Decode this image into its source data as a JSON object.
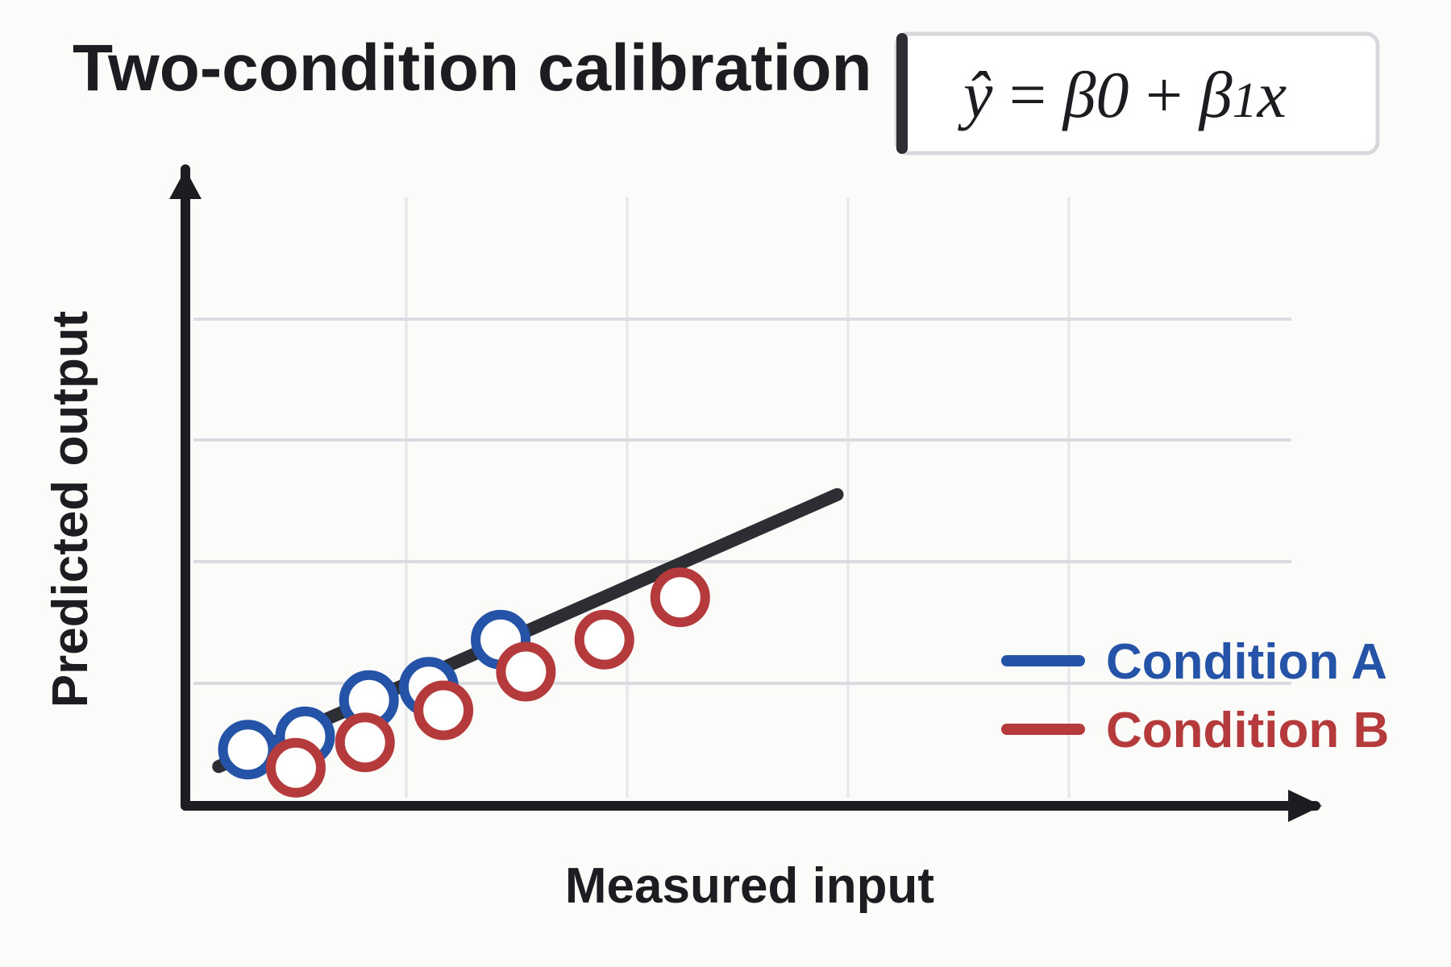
{
  "chart_data": {
    "type": "scatter",
    "title": "Two-condition calibration",
    "equation": {
      "yhat": "ŷ",
      "eq": " = ",
      "b0": "β",
      "sub0": "0",
      "plus": " + ",
      "b1": "β",
      "sub1": "1",
      "x": "x"
    },
    "xlabel": "Measured input",
    "ylabel": "Predicted output",
    "xlim": [
      0,
      10
    ],
    "ylim": [
      0,
      10
    ],
    "grid": true,
    "legend_position": "bottom-right",
    "fit_line": {
      "x": [
        0.25,
        4.9
      ],
      "y": [
        0.65,
        5.15
      ],
      "color": "#2c2e33"
    },
    "series": [
      {
        "name": "Condition A",
        "color": "#2553a8",
        "x": [
          0.47,
          0.9,
          1.38,
          1.83,
          2.37
        ],
        "y": [
          0.93,
          1.15,
          1.75,
          1.97,
          2.75
        ]
      },
      {
        "name": "Condition B",
        "color": "#b53a3c",
        "x": [
          0.83,
          1.35,
          1.94,
          2.56,
          3.15,
          3.72
        ],
        "y": [
          0.63,
          1.05,
          1.58,
          2.22,
          2.75,
          3.45
        ]
      }
    ]
  }
}
